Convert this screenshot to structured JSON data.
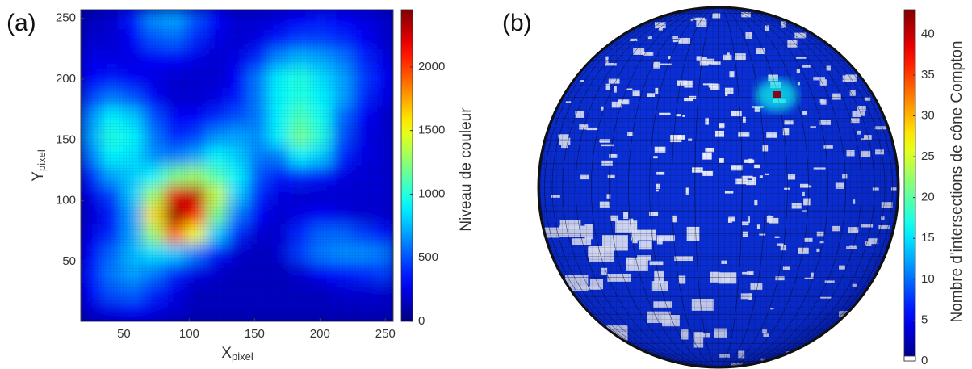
{
  "chart_data": [
    {
      "type": "heatmap",
      "panel_label": "(a)",
      "xlabel": "X",
      "xlabel_sub": "pixel",
      "ylabel": "Y",
      "ylabel_sub": "pixel",
      "colormap": "jet",
      "x": [
        25,
        41,
        57,
        73,
        89,
        105,
        121,
        137,
        153,
        169,
        185,
        201,
        217,
        233,
        249
      ],
      "y": [
        9,
        25,
        41,
        57,
        73,
        89,
        105,
        121,
        137,
        153,
        169,
        185,
        201,
        217,
        233,
        249
      ],
      "values": [
        [
          200,
          250,
          300,
          250,
          200,
          150,
          150,
          150,
          150,
          150,
          150,
          150,
          150,
          150,
          150
        ],
        [
          300,
          500,
          550,
          400,
          250,
          150,
          150,
          150,
          150,
          150,
          150,
          150,
          200,
          200,
          200
        ],
        [
          350,
          600,
          700,
          600,
          400,
          250,
          200,
          150,
          150,
          150,
          200,
          300,
          350,
          400,
          450
        ],
        [
          300,
          550,
          750,
          850,
          800,
          600,
          350,
          200,
          150,
          200,
          450,
          600,
          650,
          650,
          600
        ],
        [
          250,
          400,
          700,
          1300,
          1900,
          1500,
          800,
          400,
          200,
          200,
          400,
          550,
          550,
          450,
          350
        ],
        [
          200,
          350,
          700,
          1600,
          2400,
          2100,
          1200,
          600,
          300,
          200,
          250,
          300,
          250,
          200,
          200
        ],
        [
          250,
          450,
          800,
          1300,
          2200,
          2300,
          1400,
          800,
          400,
          250,
          200,
          200,
          200,
          200,
          200
        ],
        [
          400,
          700,
          800,
          900,
          1200,
          1300,
          1100,
          900,
          500,
          350,
          400,
          350,
          250,
          200,
          200
        ],
        [
          600,
          900,
          850,
          650,
          600,
          700,
          900,
          800,
          600,
          600,
          900,
          800,
          400,
          250,
          200
        ],
        [
          700,
          1000,
          900,
          600,
          400,
          450,
          650,
          700,
          650,
          900,
          1200,
          1000,
          500,
          250,
          200
        ],
        [
          650,
          900,
          800,
          500,
          300,
          300,
          400,
          500,
          600,
          900,
          1100,
          950,
          550,
          300,
          200
        ],
        [
          450,
          600,
          500,
          300,
          200,
          200,
          250,
          350,
          600,
          900,
          1000,
          900,
          700,
          400,
          250
        ],
        [
          300,
          350,
          300,
          250,
          200,
          200,
          200,
          300,
          600,
          900,
          1000,
          850,
          700,
          450,
          300
        ],
        [
          250,
          250,
          250,
          300,
          300,
          250,
          200,
          250,
          400,
          650,
          750,
          700,
          600,
          400,
          250
        ],
        [
          200,
          200,
          300,
          500,
          550,
          400,
          250,
          200,
          250,
          350,
          450,
          450,
          400,
          300,
          200
        ],
        [
          150,
          200,
          350,
          650,
          700,
          500,
          300,
          200,
          200,
          250,
          300,
          350,
          300,
          250,
          200
        ]
      ],
      "xlim": [
        17,
        256
      ],
      "ylim": [
        1,
        257
      ],
      "xticks": [
        50,
        100,
        150,
        200,
        250
      ],
      "yticks": [
        50,
        100,
        150,
        200,
        250
      ],
      "colorbar": {
        "label": "Niveau de couleur",
        "lim": [
          0,
          2450
        ],
        "ticks": [
          0,
          500,
          1000,
          1500,
          2000
        ]
      }
    },
    {
      "type": "sphere",
      "panel_label": "(b)",
      "colormap": "jet",
      "hotspot": 42,
      "colorbar": {
        "label": "Nombre d'intersections de cône Compton",
        "lim": [
          0,
          43
        ],
        "ticks": [
          0,
          5,
          10,
          15,
          20,
          25,
          30,
          35,
          40
        ]
      }
    }
  ]
}
